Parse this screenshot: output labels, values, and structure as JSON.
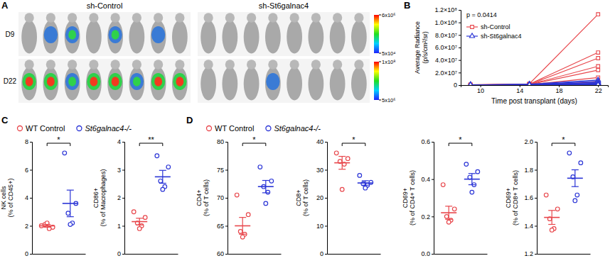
{
  "images": {
    "panel": "A",
    "groups": [
      "sh-Control",
      "sh-St6galnac4"
    ],
    "rows": [
      {
        "label": "D9",
        "colorbar": {
          "range": [
            50000,
            6000000
          ],
          "ticks": [
            {
              "value": 6000000,
              "label": "6x10⁶"
            },
            {
              "value": 50000,
              "label": "5x10⁴"
            }
          ]
        }
      },
      {
        "label": "D22",
        "colorbar": {
          "range": [
            5000000,
            100000000
          ],
          "ticks": [
            {
              "value": 100000000,
              "label": "1x10⁸"
            },
            {
              "value": 5000000,
              "label": "5x10⁶"
            }
          ]
        }
      }
    ]
  },
  "chart_data": [
    {
      "type": "line",
      "panel": "B",
      "x_label": "Time post transplant (days)",
      "y_label": "Average Radiance",
      "y_sublabel": "(p/s/cm²/sr)",
      "annotations": [
        {
          "text": "p = 0.0414"
        }
      ],
      "legend": "upper left",
      "x": [
        9,
        15,
        22
      ],
      "xlim": [
        8,
        23
      ],
      "xticks": [
        10,
        14,
        18,
        22
      ],
      "ylim": [
        0,
        120000000
      ],
      "yticks": [
        0,
        {
          "value": 20000000,
          "label": "2.0×10⁷"
        },
        {
          "value": 40000000,
          "label": "4.0×10⁷"
        },
        {
          "value": 60000000,
          "label": "6.0×10⁷"
        },
        {
          "value": 80000000,
          "label": "8.0×10⁷"
        },
        {
          "value": 100000000,
          "label": "1.0×10⁸"
        },
        {
          "value": 120000000,
          "label": "1.2×10⁸"
        }
      ],
      "series": [
        {
          "name": "sh-Control",
          "color": "#e8474c",
          "marker": "square",
          "values": [
            500000,
            2000000,
            113000000
          ]
        },
        {
          "color": "#e8474c",
          "marker": "square",
          "values": [
            400000,
            1500000,
            52000000
          ]
        },
        {
          "color": "#e8474c",
          "marker": "square",
          "values": [
            300000,
            1200000,
            43000000
          ]
        },
        {
          "color": "#e8474c",
          "marker": "square",
          "values": [
            300000,
            1000000,
            30000000
          ]
        },
        {
          "color": "#e8474c",
          "marker": "square",
          "values": [
            200000,
            800000,
            24000000
          ]
        },
        {
          "color": "#e8474c",
          "marker": "square",
          "values": [
            200000,
            600000,
            12000000
          ]
        },
        {
          "color": "#e8474c",
          "marker": "square",
          "values": [
            100000,
            500000,
            5000000
          ]
        },
        {
          "color": "#e8474c",
          "marker": "square",
          "values": [
            100000,
            300000,
            2000000
          ]
        },
        {
          "name": "sh-St6galnac4",
          "color": "#2a34d6",
          "marker": "triangle",
          "values": [
            300000,
            1500000,
            8000000
          ]
        },
        {
          "color": "#2a34d6",
          "marker": "triangle",
          "values": [
            200000,
            1000000,
            6000000
          ]
        },
        {
          "color": "#2a34d6",
          "marker": "triangle",
          "values": [
            200000,
            800000,
            4000000
          ]
        },
        {
          "color": "#2a34d6",
          "marker": "triangle",
          "values": [
            100000,
            600000,
            3000000
          ]
        },
        {
          "color": "#2a34d6",
          "marker": "triangle",
          "values": [
            100000,
            500000,
            2000000
          ]
        },
        {
          "color": "#2a34d6",
          "marker": "triangle",
          "values": [
            100000,
            300000,
            1000000
          ]
        },
        {
          "color": "#2a34d6",
          "marker": "triangle",
          "values": [
            50000,
            200000,
            500000
          ]
        },
        {
          "color": "#2a34d6",
          "marker": "triangle",
          "values": [
            50000,
            100000,
            300000
          ]
        }
      ]
    },
    {
      "type": "scatter",
      "panel": "C",
      "legend": "top",
      "tick_labels": "y",
      "y_label": "NK cells",
      "y_sublabel": "(% of CD45+)",
      "ylim": [
        0,
        8
      ],
      "yticks": [
        0,
        2,
        4,
        6,
        8
      ],
      "annotations": [
        {
          "text": "*"
        }
      ],
      "series": [
        {
          "name": "WT Control",
          "color": "#e8474c",
          "marker": "circle",
          "values": [
            2.0,
            1.9,
            2.1,
            1.8,
            2.2
          ],
          "mean": 2.0,
          "error": 0.1
        },
        {
          "name": "St6galnac4-/-",
          "color": "#2a34d6",
          "marker": "circle",
          "values": [
            7.2,
            3.6,
            2.9,
            2.2,
            2.1
          ],
          "mean": 3.6,
          "error": 0.95
        }
      ]
    },
    {
      "type": "scatter",
      "tick_labels": "y",
      "y_label": "CD86+",
      "y_sublabel": "(% of Macrophages)",
      "ylim": [
        0,
        4
      ],
      "yticks": [
        0,
        1,
        2,
        3,
        4
      ],
      "annotations": [
        {
          "text": "**"
        }
      ],
      "series": [
        {
          "color": "#e8474c",
          "marker": "circle",
          "values": [
            1.5,
            1.3,
            1.1,
            1.0,
            0.9
          ],
          "mean": 1.15,
          "error": 0.12
        },
        {
          "color": "#2a34d6",
          "marker": "circle",
          "values": [
            3.5,
            3.1,
            2.6,
            2.4,
            2.3
          ],
          "mean": 2.75,
          "error": 0.23
        }
      ]
    },
    {
      "type": "scatter",
      "panel": "D",
      "legend": "top",
      "tick_labels": "y",
      "y_label": "CD4+",
      "y_sublabel": "(% of T cells)",
      "ylim": [
        60,
        80
      ],
      "yticks": [
        60,
        65,
        70,
        75,
        80
      ],
      "annotations": [
        {
          "text": "*"
        }
      ],
      "series": [
        {
          "name": "WT Control",
          "color": "#e8474c",
          "marker": "circle",
          "values": [
            70.5,
            67,
            64,
            63.5,
            63
          ],
          "mean": 65,
          "error": 1.5
        },
        {
          "name": "St6galnac4-/-",
          "color": "#2a34d6",
          "marker": "circle",
          "values": [
            75.5,
            73,
            72,
            71,
            69
          ],
          "mean": 72,
          "error": 1.1
        }
      ]
    },
    {
      "type": "scatter",
      "tick_labels": "y",
      "y_label": "CD8+",
      "y_sublabel": "(% of T cells)",
      "ylim": [
        0,
        40
      ],
      "yticks": [
        0,
        10,
        20,
        30,
        40
      ],
      "annotations": [
        {
          "text": "*"
        }
      ],
      "series": [
        {
          "color": "#e8474c",
          "marker": "circle",
          "values": [
            36,
            34,
            33,
            32,
            23
          ],
          "mean": 32.5,
          "error": 2.3
        },
        {
          "color": "#2a34d6",
          "marker": "circle",
          "values": [
            28,
            25.5,
            25,
            24.5,
            23.5
          ],
          "mean": 25.3,
          "error": 0.8
        }
      ]
    },
    {
      "type": "scatter",
      "tick_labels": "y",
      "y_label": "CD69+",
      "y_sublabel": "(% of CD4+ T cells)",
      "ylim": [
        0,
        0.6
      ],
      "yticks": [
        {
          "value": 0,
          "label": "0.0"
        },
        0.2,
        0.4,
        0.6
      ],
      "annotations": [
        {
          "text": "*"
        }
      ],
      "series": [
        {
          "color": "#e8474c",
          "marker": "circle",
          "values": [
            0.37,
            0.24,
            0.2,
            0.18,
            0.17
          ],
          "mean": 0.22,
          "error": 0.035
        },
        {
          "color": "#2a34d6",
          "marker": "circle",
          "values": [
            0.48,
            0.44,
            0.41,
            0.37,
            0.33
          ],
          "mean": 0.4,
          "error": 0.03
        }
      ]
    },
    {
      "type": "scatter",
      "tick_labels": "y",
      "y_label": "CD69+",
      "y_sublabel": "(% of CD8+ T cells)",
      "ylim": [
        1.2,
        2.0
      ],
      "yticks": [
        1.2,
        1.4,
        1.6,
        1.8,
        {
          "value": 2.0,
          "label": "2.0"
        }
      ],
      "annotations": [
        {
          "text": "*"
        }
      ],
      "series": [
        {
          "color": "#e8474c",
          "marker": "circle",
          "values": [
            1.62,
            1.52,
            1.45,
            1.38,
            1.37
          ],
          "mean": 1.46,
          "error": 0.05
        },
        {
          "color": "#2a34d6",
          "marker": "circle",
          "values": [
            1.92,
            1.85,
            1.75,
            1.62,
            1.58
          ],
          "mean": 1.74,
          "error": 0.06
        }
      ]
    }
  ]
}
